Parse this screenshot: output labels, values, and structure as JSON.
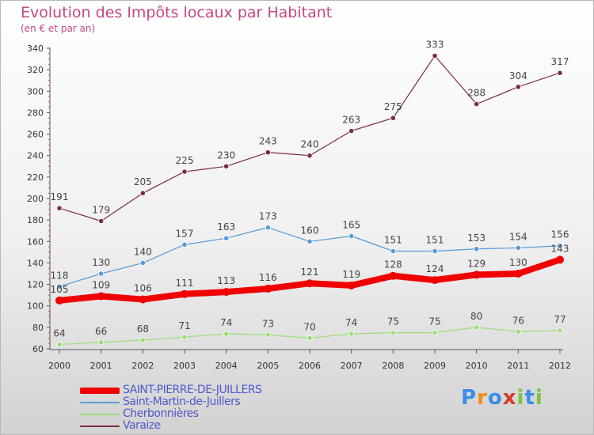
{
  "title": "Evolution des Impôts locaux par Habitant",
  "subtitle": "(en € et par an)",
  "chart_data": {
    "type": "line",
    "title": "Evolution des Impôts locaux par Habitant",
    "subtitle": "(en € et par an)",
    "xlabel": "",
    "ylabel": "",
    "x": [
      "2000",
      "2001",
      "2002",
      "2003",
      "2004",
      "2005",
      "2006",
      "2007",
      "2008",
      "2009",
      "2010",
      "2011",
      "2012"
    ],
    "ylim": [
      60,
      340
    ],
    "yticks": [
      60,
      80,
      100,
      120,
      140,
      160,
      180,
      200,
      220,
      240,
      260,
      280,
      300,
      320,
      340
    ],
    "grid": false,
    "legend_position": "bottom-left",
    "series": [
      {
        "name": "Varaize",
        "color": "#7b2f3a",
        "values": [
          191,
          179,
          205,
          225,
          230,
          243,
          240,
          263,
          275,
          333,
          288,
          304,
          317
        ]
      },
      {
        "name": "Saint-Martin-de-Juillers",
        "color": "#5a9ad6",
        "values": [
          118,
          130,
          140,
          157,
          163,
          173,
          160,
          165,
          151,
          151,
          153,
          154,
          156
        ]
      },
      {
        "name": "Cherbonnières",
        "color": "#9ddc7a",
        "values": [
          64,
          66,
          68,
          71,
          74,
          73,
          70,
          74,
          75,
          75,
          80,
          76,
          77
        ]
      },
      {
        "name": "SAINT-PIERRE-DE-JUILLERS",
        "color": "#f00000",
        "values": [
          105,
          109,
          106,
          111,
          113,
          116,
          121,
          119,
          128,
          124,
          129,
          130,
          143
        ]
      }
    ]
  },
  "legend": [
    {
      "label": "SAINT-PIERRE-DE-JUILLERS",
      "color": "#f00000"
    },
    {
      "label": "Saint-Martin-de-Juillers",
      "color": "#5a9ad6"
    },
    {
      "label": "Cherbonnières",
      "color": "#9ddc7a"
    },
    {
      "label": "Varaize",
      "color": "#7b2f3a"
    }
  ],
  "logo": {
    "letters": [
      "P",
      "r",
      "o",
      "x",
      "i",
      "t",
      "i"
    ],
    "colors": [
      "#3a8ee6",
      "#f08c1a",
      "#3a8ee6",
      "#d83a2a",
      "#7cc242",
      "#3a8ee6",
      "#7cc242"
    ]
  }
}
